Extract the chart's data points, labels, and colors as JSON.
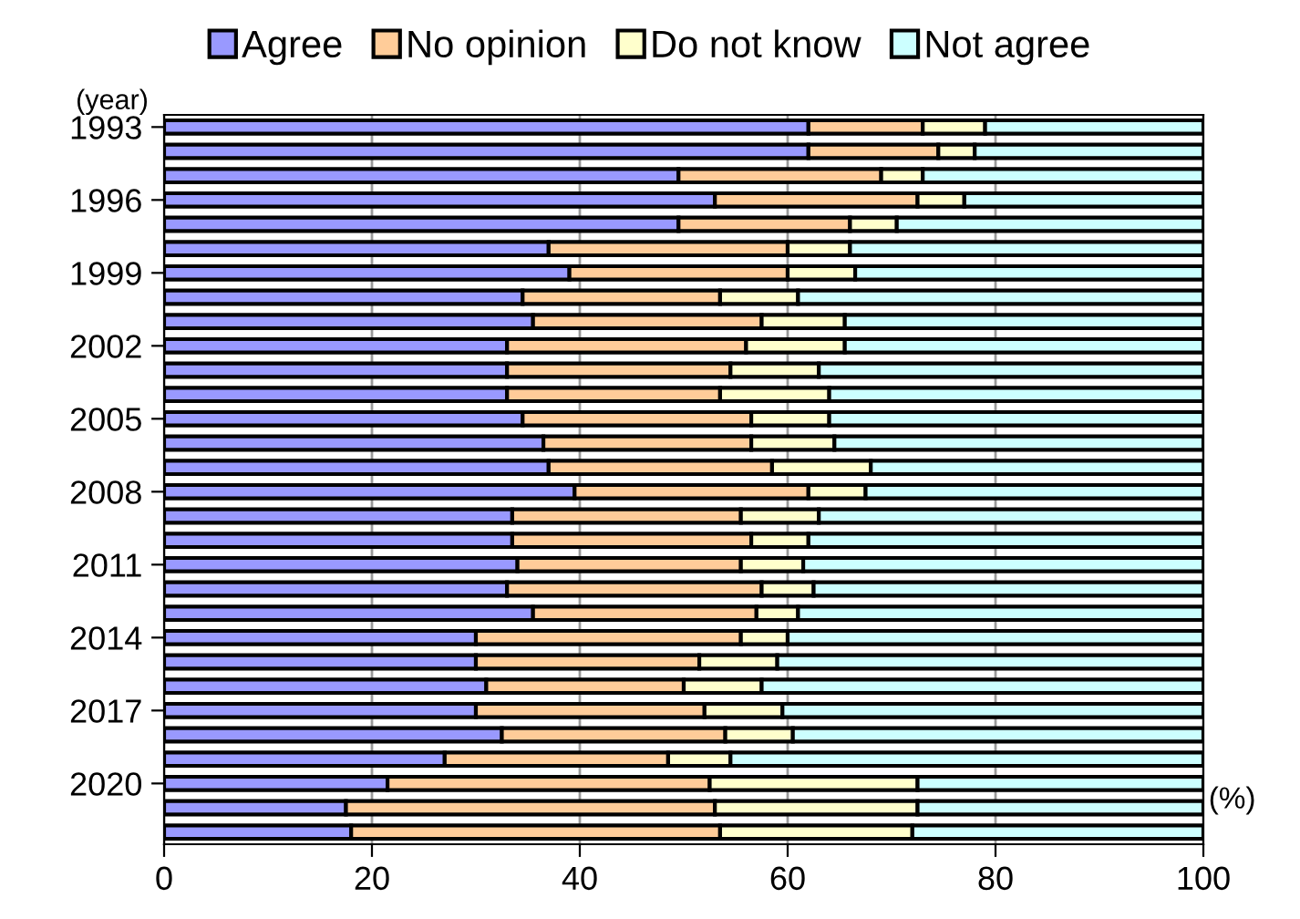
{
  "chart_data": {
    "type": "bar",
    "orientation": "horizontal",
    "stacked": true,
    "ylabel": "(year)",
    "xlabel": "(%)",
    "categories": [
      "1993",
      null,
      null,
      "1996",
      null,
      null,
      "1999",
      null,
      null,
      "2002",
      null,
      null,
      "2005",
      null,
      null,
      "2008",
      null,
      null,
      "2011",
      null,
      null,
      "2014",
      null,
      null,
      "2017",
      null,
      null,
      "2020",
      null,
      null
    ],
    "series": [
      {
        "name": "Agree",
        "color": "#9999ff",
        "values": [
          62,
          62,
          49.5,
          53,
          49.5,
          37,
          39,
          34.5,
          35.5,
          33,
          33,
          33,
          34.5,
          36.5,
          37,
          39.5,
          33.5,
          33.5,
          34,
          33,
          35.5,
          30,
          30,
          31,
          30,
          32.5,
          27,
          21.5,
          17.5,
          18
        ]
      },
      {
        "name": "No opinion",
        "color": "#ffcc99",
        "values": [
          11,
          12.5,
          19.5,
          19.5,
          16.5,
          23,
          21,
          19,
          22,
          23,
          21.5,
          20.5,
          22,
          20,
          21.5,
          22.5,
          22,
          23,
          21.5,
          24.5,
          21.5,
          25.5,
          21.5,
          19,
          22,
          21.5,
          21.5,
          31,
          35.5,
          35.5
        ]
      },
      {
        "name": "Do not know",
        "color": "#ffffcc",
        "values": [
          6,
          3.5,
          4,
          4.5,
          4.5,
          6,
          6.5,
          7.5,
          8,
          9.5,
          8.5,
          10.5,
          7.5,
          8,
          9.5,
          5.5,
          7.5,
          5.5,
          6,
          5,
          4,
          4.5,
          7.5,
          7.5,
          7.5,
          6.5,
          6,
          20,
          19.5,
          18.5
        ]
      },
      {
        "name": "Not agree",
        "color": "#ccffff",
        "values": [
          21,
          22,
          27,
          23,
          29.5,
          34,
          33.5,
          39,
          34.5,
          34.5,
          37,
          36,
          36,
          35.5,
          32,
          32.5,
          37,
          38,
          38.5,
          37.5,
          39,
          40,
          41,
          42.5,
          40.5,
          39.5,
          45.5,
          27.5,
          27.5,
          28
        ]
      }
    ],
    "xlim": [
      0,
      100
    ],
    "xticks": [
      0,
      20,
      40,
      60,
      80,
      100
    ],
    "grid": "x",
    "legend": "top"
  }
}
